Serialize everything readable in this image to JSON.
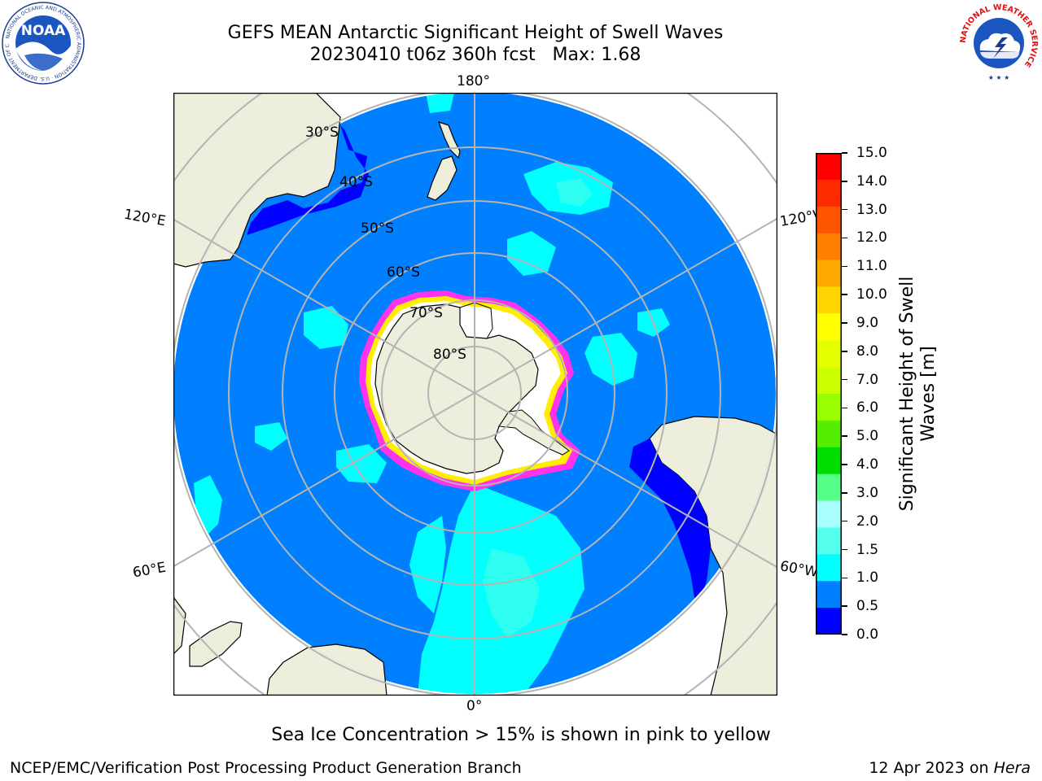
{
  "header": {
    "title_line1": "GEFS MEAN Antarctic Significant Height of Swell Waves",
    "title_line2": "20230410 t06z 360h fcst   Max: 1.68"
  },
  "logos": {
    "left": {
      "text": "NOAA",
      "ring_text": "NATIONAL OCEANIC AND ATMOSPHERIC ADMINISTRATION · U.S. DEPARTMENT OF COMMERCE"
    },
    "right": {
      "ring_text": "NATIONAL WEATHER SERVICE"
    }
  },
  "map": {
    "longitude_labels": [
      "180°",
      "120°E",
      "120°W",
      "60°E",
      "60°W",
      "0°"
    ],
    "latitude_labels": [
      "30°S",
      "40°S",
      "50°S",
      "60°S",
      "70°S",
      "80°S"
    ],
    "colors": {
      "ocean_low": "#0000ff",
      "ocean": "#0080ff",
      "swell_cyan": "#00ffff",
      "swell_light": "#33ffee",
      "land": "#eeeedd",
      "ice_white": "#ffffff",
      "ice_pink": "#ff33ee",
      "ice_yellow": "#ffee00",
      "grid": "#b4b4b4"
    }
  },
  "colorbar": {
    "label": "Significant Height of Swell Waves [m]",
    "label_line1": "Significant Height of Swell",
    "label_line2": "Waves [m]",
    "tick_labels": [
      "15.0",
      "14.0",
      "13.0",
      "12.0",
      "11.0",
      "10.0",
      "9.0",
      "8.0",
      "7.0",
      "6.0",
      "5.0",
      "4.0",
      "3.0",
      "2.0",
      "1.5",
      "1.0",
      "0.5",
      "0.0"
    ],
    "bin_colors": [
      "#ff0000",
      "#ff2a00",
      "#ff5500",
      "#ff8000",
      "#ffaa00",
      "#ffd400",
      "#ffff00",
      "#e6ff00",
      "#ccff00",
      "#99ff00",
      "#55ee00",
      "#00dd00",
      "#55ff88",
      "#aaffff",
      "#55ffee",
      "#00ffff",
      "#0080ff",
      "#0000ff"
    ]
  },
  "caption": "Sea Ice Concentration > 15% is shown in pink to yellow",
  "footer": {
    "left": "NCEP/EMC/Verification Post Processing Product Generation Branch",
    "right_prefix": "12 Apr 2023 on ",
    "right_italic": "Hera"
  }
}
